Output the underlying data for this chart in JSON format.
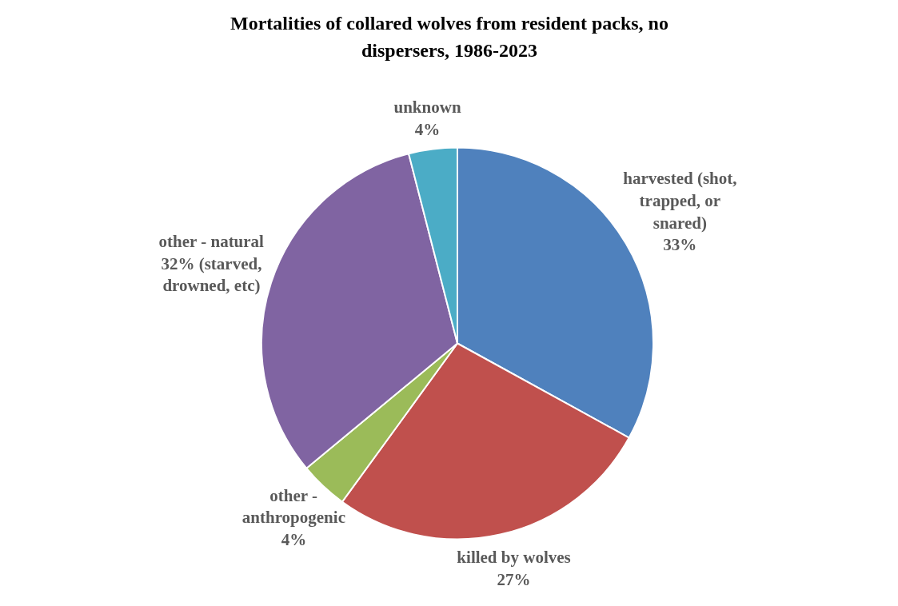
{
  "chart_data": {
    "type": "pie",
    "title": "Mortalities of collared wolves from resident packs, no dispersers, 1986-2023",
    "categories": [
      "harvested (shot, trapped, or snared)",
      "killed by wolves",
      "other - anthropogenic",
      "other - natural",
      "unknown"
    ],
    "values": [
      33,
      27,
      4,
      32,
      4
    ],
    "colors": [
      "#4f81bd",
      "#c0504d",
      "#9bbb59",
      "#8064a2",
      "#4bacc6"
    ],
    "value_labels": [
      "33%",
      "27%",
      "4%",
      "32% (starved, drowned, etc)",
      "4%"
    ]
  }
}
